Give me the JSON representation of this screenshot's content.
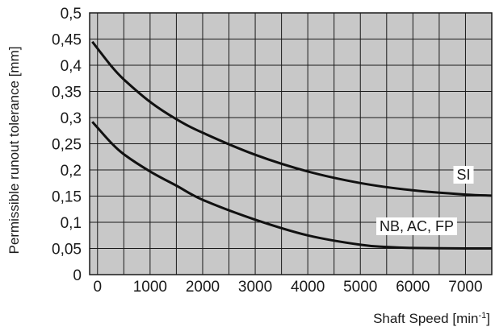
{
  "chart_data": {
    "type": "line",
    "xlabel": "Shaft Speed [min",
    "xlabel_sup": "-1",
    "xlabel_end": "]",
    "ylabel": "Permissible runout tolerance [mm]",
    "xlim": [
      -150,
      7500
    ],
    "ylim": [
      0,
      0.5
    ],
    "x_ticks": [
      0,
      1000,
      2000,
      3000,
      4000,
      5000,
      6000,
      7000
    ],
    "x_tick_labels": [
      "0",
      "1000",
      "2000",
      "3000",
      "4000",
      "5000",
      "6000",
      "7000"
    ],
    "y_ticks": [
      0,
      0.05,
      0.1,
      0.15,
      0.2,
      0.25,
      0.3,
      0.35,
      0.4,
      0.45,
      0.5
    ],
    "y_tick_labels": [
      "0",
      "0,05",
      "0,1",
      "0,15",
      "0,2",
      "0,25",
      "0,3",
      "0,35",
      "0,4",
      "0,45",
      "0,5"
    ],
    "grid_x_step": 500,
    "grid_y_step": 0.05,
    "grid": true,
    "colors": {
      "plot_background": "#c8c8c8",
      "grid": "#1a1a1a",
      "line": "#111111"
    },
    "series": [
      {
        "name": "SI",
        "x": [
          -100,
          250,
          500,
          1000,
          1500,
          2000,
          3000,
          4000,
          5000,
          6000,
          7000,
          7500
        ],
        "y": [
          0.445,
          0.4,
          0.373,
          0.33,
          0.297,
          0.271,
          0.229,
          0.197,
          0.175,
          0.161,
          0.153,
          0.151
        ]
      },
      {
        "name": "NB, AC, FP",
        "x": [
          -100,
          250,
          500,
          1000,
          1500,
          2000,
          3000,
          4000,
          5000,
          5500,
          6000,
          7000,
          7500
        ],
        "y": [
          0.292,
          0.253,
          0.23,
          0.197,
          0.17,
          0.143,
          0.105,
          0.075,
          0.057,
          0.053,
          0.051,
          0.05,
          0.05
        ]
      }
    ]
  }
}
